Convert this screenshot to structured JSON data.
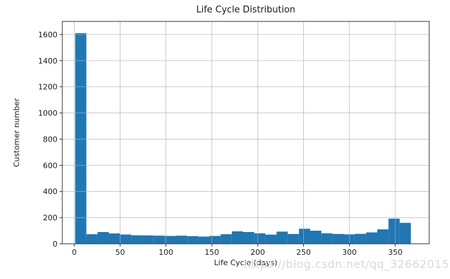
{
  "figure": {
    "watermark": "https://blog.csdn.net/qq_32662015",
    "background_color": "#ffffff"
  },
  "chart_data": {
    "type": "bar",
    "subtype": "histogram",
    "title": "Life Cycle Distribution",
    "xlabel": "Life Cycle (days)",
    "ylabel": "Customer number",
    "bar_color": "#1f77b4",
    "grid": true,
    "grid_color": "#b0b0b0",
    "legend": "none",
    "bin_start": 1,
    "bin_width": 12.2,
    "values": [
      1610,
      73,
      90,
      79,
      71,
      65,
      64,
      62,
      60,
      62,
      58,
      55,
      60,
      73,
      95,
      90,
      80,
      70,
      93,
      75,
      115,
      100,
      80,
      75,
      72,
      76,
      87,
      110,
      192,
      160
    ],
    "x_ticks": [
      0,
      50,
      100,
      150,
      200,
      250,
      300,
      350
    ],
    "y_ticks": [
      0,
      200,
      400,
      600,
      800,
      1000,
      1200,
      1400,
      1600
    ],
    "xlim": [
      -13,
      387
    ],
    "ylim": [
      0,
      1700
    ]
  }
}
